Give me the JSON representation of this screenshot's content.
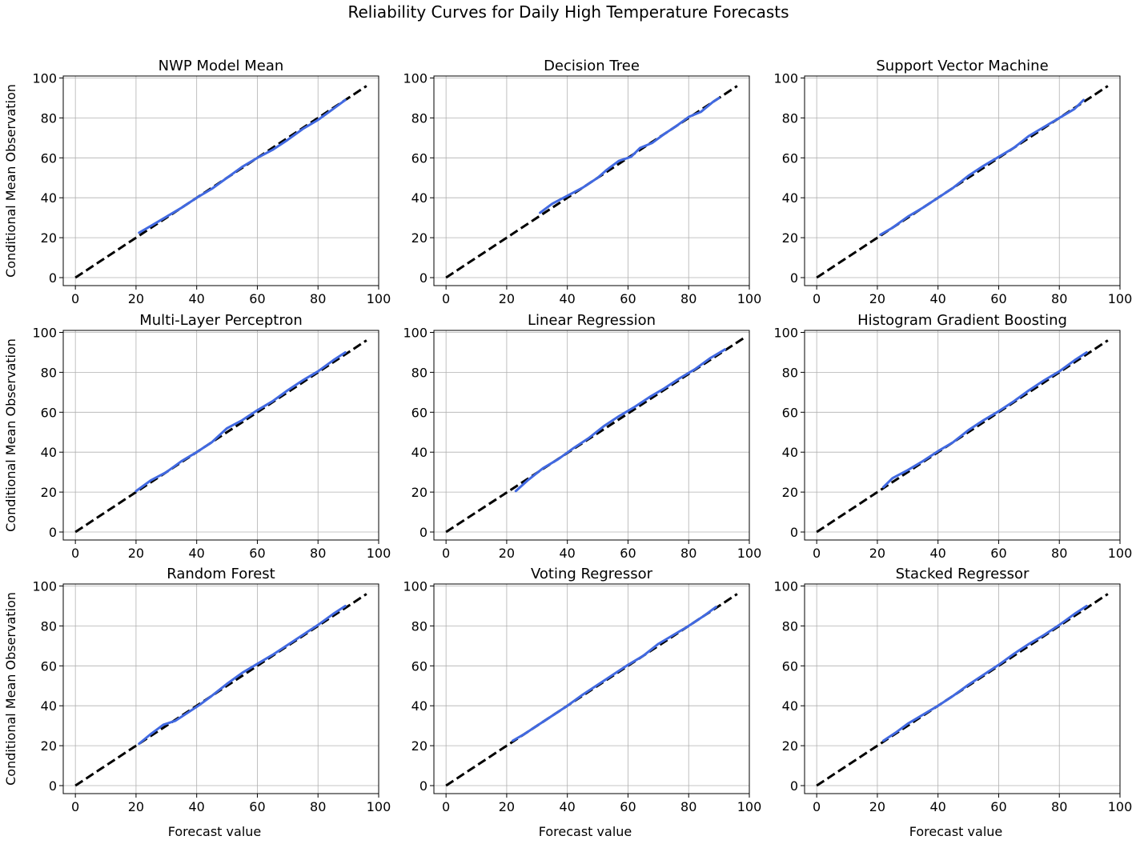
{
  "figure": {
    "title": "Reliability Curves for Daily High Temperature Forecasts",
    "ylabel": "Conditional Mean Observation",
    "xlabel": "Forecast value"
  },
  "colors": {
    "curve": "#4169e1",
    "reference": "#000000",
    "grid": "#b0b0b0"
  },
  "chart_data": [
    {
      "type": "line",
      "title": "NWP Model Mean",
      "xlim": [
        -4,
        100
      ],
      "ylim": [
        -4,
        101
      ],
      "xticks": [
        0,
        20,
        40,
        60,
        80,
        100
      ],
      "yticks": [
        0,
        20,
        40,
        60,
        80,
        100
      ],
      "grid": true,
      "reference": {
        "x": [
          0,
          96
        ],
        "y": [
          0,
          96
        ]
      },
      "series": [
        {
          "x": [
            21,
            25,
            30,
            35,
            40,
            45,
            50,
            55,
            60,
            65,
            70,
            75,
            80,
            85,
            89
          ],
          "y": [
            22.5,
            26,
            30.5,
            35,
            40,
            44.5,
            50,
            55.5,
            60,
            64,
            69,
            74.5,
            79,
            84.5,
            89
          ]
        }
      ]
    },
    {
      "type": "line",
      "title": "Decision Tree",
      "xlim": [
        -4,
        100
      ],
      "ylim": [
        -4,
        101
      ],
      "xticks": [
        0,
        20,
        40,
        60,
        80,
        100
      ],
      "yticks": [
        0,
        20,
        40,
        60,
        80,
        100
      ],
      "grid": true,
      "reference": {
        "x": [
          0,
          96
        ],
        "y": [
          0,
          96
        ]
      },
      "series": [
        {
          "x": [
            31,
            35,
            40,
            45,
            50,
            53,
            57,
            61,
            64,
            68,
            72,
            76,
            80,
            84,
            88,
            90
          ],
          "y": [
            32.5,
            37,
            41,
            45,
            50,
            54,
            58.5,
            60.5,
            65,
            67.5,
            72,
            76,
            80.5,
            83,
            88,
            90
          ]
        }
      ]
    },
    {
      "type": "line",
      "title": "Support Vector Machine",
      "xlim": [
        -4,
        100
      ],
      "ylim": [
        -4,
        101
      ],
      "xticks": [
        0,
        20,
        40,
        60,
        80,
        100
      ],
      "yticks": [
        0,
        20,
        40,
        60,
        80,
        100
      ],
      "grid": true,
      "reference": {
        "x": [
          0,
          96
        ],
        "y": [
          0,
          96
        ]
      },
      "series": [
        {
          "x": [
            21,
            25,
            30,
            35,
            40,
            45,
            50,
            55,
            60,
            65,
            70,
            75,
            80,
            85,
            88
          ],
          "y": [
            21.5,
            25,
            30.5,
            35,
            40,
            45,
            51,
            56,
            60.5,
            65,
            71,
            75.5,
            80,
            84.5,
            89
          ]
        }
      ]
    },
    {
      "type": "line",
      "title": "Multi-Layer Perceptron",
      "xlim": [
        -4,
        100
      ],
      "ylim": [
        -4,
        101
      ],
      "xticks": [
        0,
        20,
        40,
        60,
        80,
        100
      ],
      "yticks": [
        0,
        20,
        40,
        60,
        80,
        100
      ],
      "grid": true,
      "reference": {
        "x": [
          0,
          96
        ],
        "y": [
          0,
          96
        ]
      },
      "series": [
        {
          "x": [
            20,
            25,
            30,
            35,
            40,
            45,
            50,
            55,
            60,
            65,
            70,
            75,
            80,
            85,
            89
          ],
          "y": [
            20.5,
            26,
            30,
            35.5,
            40,
            45,
            52,
            56,
            61,
            65.5,
            71,
            76,
            80.5,
            86,
            90
          ]
        }
      ]
    },
    {
      "type": "line",
      "title": "Linear Regression",
      "xlim": [
        -4,
        100
      ],
      "ylim": [
        -4,
        101
      ],
      "xticks": [
        0,
        20,
        40,
        60,
        80,
        100
      ],
      "yticks": [
        0,
        20,
        40,
        60,
        80,
        100
      ],
      "grid": true,
      "reference": {
        "x": [
          0,
          98
        ],
        "y": [
          0,
          97
        ]
      },
      "series": [
        {
          "x": [
            23,
            27,
            32,
            37,
            42,
            47,
            52,
            57,
            62,
            67,
            72,
            77,
            82,
            87,
            92
          ],
          "y": [
            20.5,
            26,
            32,
            36.5,
            42,
            47,
            53,
            58,
            62.5,
            67.5,
            72,
            77,
            81.5,
            87,
            91.5
          ]
        }
      ]
    },
    {
      "type": "line",
      "title": "Histogram Gradient Boosting",
      "xlim": [
        -4,
        100
      ],
      "ylim": [
        -4,
        101
      ],
      "xticks": [
        0,
        20,
        40,
        60,
        80,
        100
      ],
      "yticks": [
        0,
        20,
        40,
        60,
        80,
        100
      ],
      "grid": true,
      "reference": {
        "x": [
          0,
          96
        ],
        "y": [
          0,
          96
        ]
      },
      "series": [
        {
          "x": [
            22,
            25,
            30,
            35,
            40,
            45,
            50,
            55,
            60,
            65,
            70,
            75,
            80,
            85,
            89
          ],
          "y": [
            22.5,
            27,
            31,
            35.5,
            40.5,
            45,
            51,
            56,
            60.5,
            65.5,
            71,
            76,
            80.5,
            86,
            90
          ]
        }
      ]
    },
    {
      "type": "line",
      "title": "Random Forest",
      "xlim": [
        -4,
        100
      ],
      "ylim": [
        -4,
        101
      ],
      "xticks": [
        0,
        20,
        40,
        60,
        80,
        100
      ],
      "yticks": [
        0,
        20,
        40,
        60,
        80,
        100
      ],
      "grid": true,
      "reference": {
        "x": [
          0,
          96
        ],
        "y": [
          0,
          96
        ]
      },
      "series": [
        {
          "x": [
            21,
            25,
            29,
            33,
            37,
            41,
            45,
            50,
            55,
            60,
            65,
            70,
            75,
            80,
            85,
            89
          ],
          "y": [
            21,
            26,
            30.5,
            32.5,
            36.5,
            40.5,
            45,
            51,
            56.5,
            61,
            65.5,
            70.5,
            75.5,
            80.5,
            86,
            90
          ]
        }
      ]
    },
    {
      "type": "line",
      "title": "Voting Regressor",
      "xlim": [
        -4,
        100
      ],
      "ylim": [
        -4,
        101
      ],
      "xticks": [
        0,
        20,
        40,
        60,
        80,
        100
      ],
      "yticks": [
        0,
        20,
        40,
        60,
        80,
        100
      ],
      "grid": true,
      "reference": {
        "x": [
          0,
          96
        ],
        "y": [
          0,
          96
        ]
      },
      "series": [
        {
          "x": [
            22,
            26,
            30,
            35,
            40,
            45,
            50,
            55,
            60,
            65,
            70,
            75,
            80,
            85,
            89
          ],
          "y": [
            22.5,
            26,
            30,
            35,
            40,
            45.5,
            50.5,
            55.5,
            60.5,
            65,
            71,
            75.5,
            80,
            85,
            89.5
          ]
        }
      ]
    },
    {
      "type": "line",
      "title": "Stacked Regressor",
      "xlim": [
        -4,
        100
      ],
      "ylim": [
        -4,
        101
      ],
      "xticks": [
        0,
        20,
        40,
        60,
        80,
        100
      ],
      "yticks": [
        0,
        20,
        40,
        60,
        80,
        100
      ],
      "grid": true,
      "reference": {
        "x": [
          0,
          96
        ],
        "y": [
          0,
          96
        ]
      },
      "series": [
        {
          "x": [
            22,
            26,
            30,
            35,
            40,
            45,
            50,
            55,
            60,
            65,
            70,
            75,
            80,
            85,
            89
          ],
          "y": [
            22.5,
            26.5,
            31,
            35.5,
            40,
            45,
            50.5,
            55.5,
            60.5,
            66,
            71,
            75.5,
            80.5,
            86,
            90
          ]
        }
      ]
    }
  ]
}
